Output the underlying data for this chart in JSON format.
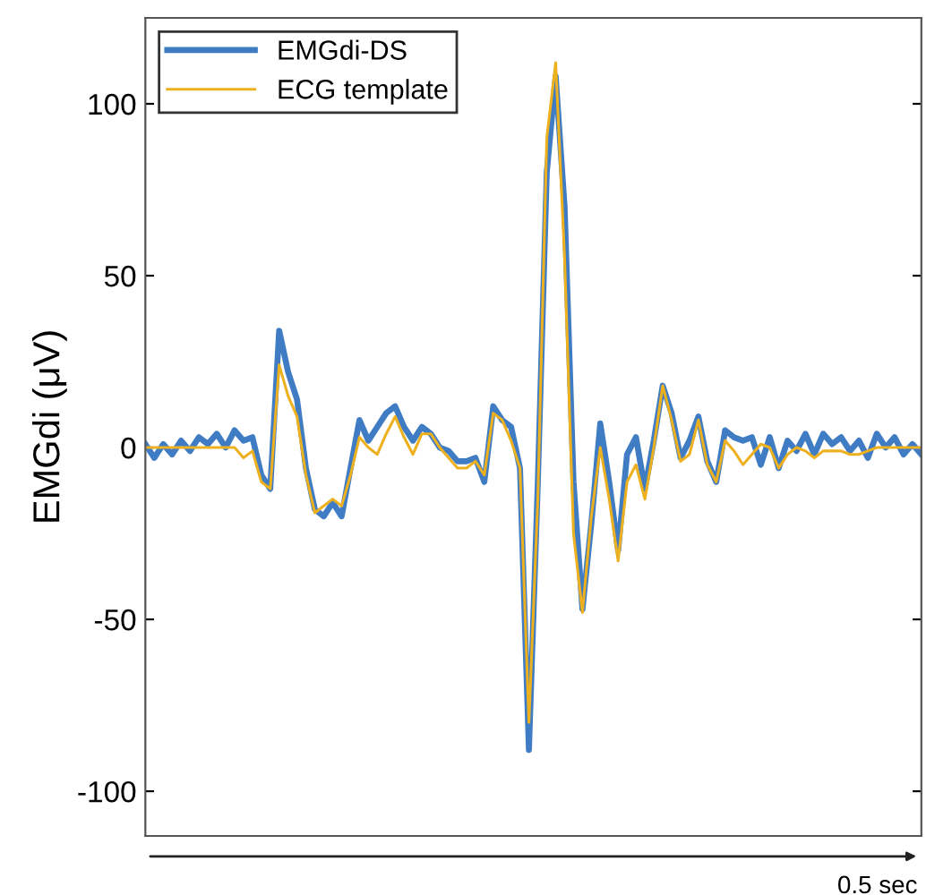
{
  "chart_data": {
    "type": "line",
    "ylabel": "EMGdi (μV)",
    "categories": [
      null,
      null,
      null,
      null,
      null,
      null,
      null,
      null,
      null,
      null,
      null,
      null,
      null,
      null,
      null,
      null,
      null,
      null,
      null,
      null,
      null,
      null,
      null,
      null,
      null,
      null,
      null,
      null,
      null,
      null,
      null,
      null,
      null,
      null,
      null,
      null,
      null,
      null,
      null,
      null,
      null,
      null,
      null,
      null,
      null,
      null,
      null,
      null,
      null,
      null,
      null,
      null,
      null,
      null,
      null,
      null,
      null,
      null,
      null,
      null,
      null,
      null,
      null,
      null,
      null,
      null,
      null,
      null,
      null,
      null,
      null,
      null,
      null,
      null,
      null,
      null,
      null,
      null,
      null,
      null,
      null,
      null,
      null,
      null,
      null,
      null,
      null,
      null
    ],
    "series": [
      {
        "name": "EMGdi-DS",
        "color": "#3f7cc4",
        "values": [
          1,
          -3,
          1,
          -2,
          2,
          -1,
          3,
          1,
          4,
          0,
          5,
          2,
          3,
          -8,
          -12,
          34,
          22,
          14,
          -6,
          -18,
          -20,
          -16,
          -20,
          -6,
          8,
          2,
          6,
          10,
          12,
          6,
          2,
          6,
          4,
          0,
          -1,
          -4,
          -4,
          -3,
          -10,
          12,
          8,
          6,
          -6,
          -88,
          -10,
          80,
          108,
          70,
          -10,
          -47,
          -22,
          7,
          -10,
          -30,
          -2,
          3,
          -12,
          2,
          18,
          10,
          -3,
          2,
          9,
          -4,
          -10,
          5,
          3,
          2,
          3,
          -5,
          3,
          -6,
          2,
          -1,
          4,
          -2,
          4,
          1,
          3,
          -1,
          2,
          -3,
          4,
          0,
          3,
          -2,
          1,
          -2
        ]
      },
      {
        "name": "ECG template",
        "color": "#edb120",
        "values": [
          0,
          0,
          0,
          0,
          0,
          0,
          0,
          0,
          0,
          0,
          0,
          -3,
          -1,
          -10,
          -12,
          24,
          15,
          9,
          -8,
          -19,
          -17,
          -15,
          -17,
          -8,
          3,
          0,
          -2,
          4,
          9,
          3,
          -2,
          4,
          4,
          0,
          -3,
          -6,
          -6,
          -4,
          -8,
          10,
          8,
          2,
          -6,
          -80,
          -15,
          90,
          112,
          55,
          -25,
          -48,
          -20,
          0,
          -15,
          -33,
          -10,
          -5,
          -15,
          0,
          18,
          8,
          -4,
          -2,
          8,
          -5,
          -10,
          2,
          -1,
          -5,
          -2,
          1,
          0,
          -6,
          -2,
          0,
          -1,
          -3,
          -1,
          -1,
          -1,
          -2,
          -2,
          -1,
          0,
          0,
          0,
          0,
          0,
          0
        ]
      }
    ],
    "ylim": [
      -113,
      125
    ],
    "yticks": [
      -100,
      -50,
      0,
      50,
      100
    ],
    "tick_labels": "y",
    "legend": "top left",
    "line_style": "solid",
    "marker": "none",
    "annotations": [
      "0.5 sec"
    ]
  }
}
